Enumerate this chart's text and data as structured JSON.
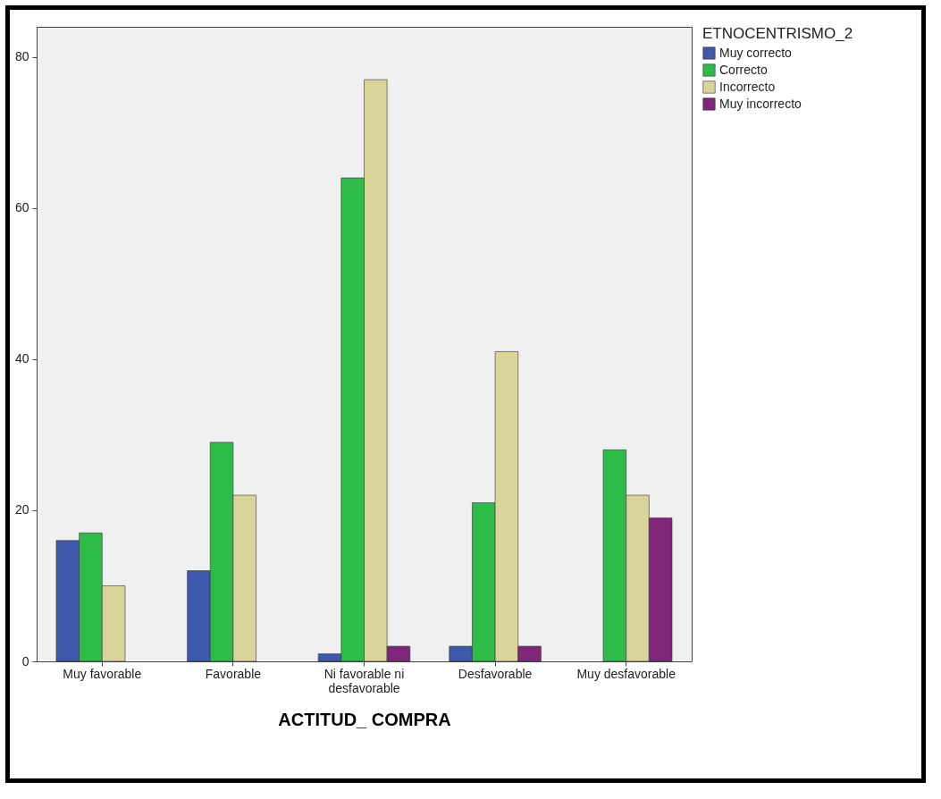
{
  "chart_data": {
    "type": "bar",
    "xlabel": "ACTITUD_ COMPRA",
    "legend_title": "ETNOCENTRISMO_2",
    "categories": [
      "Muy favorable",
      "Favorable",
      "Ni favorable ni desfavorable",
      "Desfavorable",
      "Muy desfavorable"
    ],
    "series": [
      {
        "name": "Muy correcto",
        "color": "#3e58ac",
        "values": [
          16,
          12,
          1,
          2,
          null
        ]
      },
      {
        "name": "Correcto",
        "color": "#2dbc48",
        "values": [
          17,
          29,
          64,
          21,
          28
        ]
      },
      {
        "name": "Incorrecto",
        "color": "#d9d49a",
        "values": [
          10,
          22,
          77,
          41,
          22
        ]
      },
      {
        "name": "Muy incorrecto",
        "color": "#80267a",
        "values": [
          null,
          null,
          2,
          2,
          19
        ]
      }
    ],
    "ylim": [
      0,
      84
    ],
    "yticks": [
      0,
      20,
      40,
      60,
      80
    ],
    "grid": false,
    "legend": "top right"
  }
}
